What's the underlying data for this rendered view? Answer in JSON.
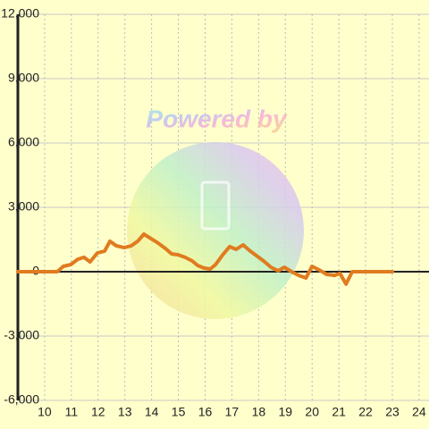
{
  "chart_data": {
    "type": "line",
    "watermark": "Powered by",
    "x": [
      9,
      10.47,
      10.7,
      10.97,
      11.24,
      11.47,
      11.7,
      11.97,
      12.24,
      12.44,
      12.68,
      12.98,
      13.24,
      13.48,
      13.71,
      13.98,
      14.25,
      14.52,
      14.75,
      14.98,
      15.25,
      15.52,
      15.72,
      15.95,
      16.19,
      16.39,
      16.66,
      16.92,
      17.16,
      17.42,
      17.69,
      17.96,
      18.19,
      18.46,
      18.73,
      18.96,
      19.23,
      19.5,
      19.77,
      20,
      20.27,
      20.54,
      20.84,
      21.04,
      21.27,
      21.5,
      23
    ],
    "series": [
      {
        "color": "#e07b20",
        "values": [
          0,
          0,
          250,
          330,
          580,
          670,
          460,
          870,
          960,
          1420,
          1210,
          1120,
          1210,
          1420,
          1750,
          1540,
          1330,
          1080,
          830,
          790,
          670,
          500,
          290,
          170,
          125,
          330,
          790,
          1170,
          1040,
          1250,
          960,
          710,
          500,
          210,
          40,
          210,
          0,
          -170,
          -290,
          250,
          80,
          -125,
          -170,
          -80,
          -580,
          0,
          0
        ]
      }
    ],
    "xlim": [
      9,
      24.37
    ],
    "xticks": [
      10,
      11,
      12,
      13,
      14,
      15,
      16,
      17,
      18,
      19,
      20,
      21,
      22,
      23,
      24
    ],
    "ylim": [
      -6000,
      12000
    ],
    "yticks": [
      {
        "value": -6000,
        "label": "-6,000"
      },
      {
        "value": -3000,
        "label": "-3,000"
      },
      0,
      {
        "value": 3000,
        "label": "3,000"
      },
      {
        "value": 6000,
        "label": "6,000"
      },
      {
        "value": 9000,
        "label": "9,000"
      },
      {
        "value": 12000,
        "label": "12,000"
      }
    ],
    "grid": true
  }
}
